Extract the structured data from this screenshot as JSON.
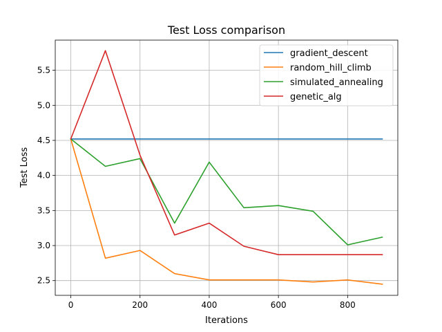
{
  "chart_data": {
    "type": "line",
    "title": "Test Loss comparison",
    "xlabel": "Iterations",
    "ylabel": "Test Loss",
    "xlim": [
      -45,
      945
    ],
    "ylim": [
      2.29,
      5.93
    ],
    "xticks": [
      0,
      200,
      400,
      600,
      800
    ],
    "yticks": [
      2.5,
      3.0,
      3.5,
      4.0,
      4.5,
      5.0,
      5.5
    ],
    "xtick_labels": [
      "0",
      "200",
      "400",
      "600",
      "800"
    ],
    "ytick_labels": [
      "2.5",
      "3.0",
      "3.5",
      "4.0",
      "4.5",
      "5.0",
      "5.5"
    ],
    "grid": true,
    "legend_position": "top-right",
    "x": [
      0,
      100,
      200,
      300,
      400,
      500,
      600,
      700,
      800,
      900
    ],
    "series": [
      {
        "name": "gradient_descent",
        "color": "#1f77b4",
        "values": [
          4.52,
          4.52,
          4.52,
          4.52,
          4.52,
          4.52,
          4.52,
          4.52,
          4.52,
          4.52
        ]
      },
      {
        "name": "random_hill_climb",
        "color": "#ff7f0e",
        "values": [
          4.52,
          2.82,
          2.93,
          2.6,
          2.51,
          2.51,
          2.51,
          2.48,
          2.51,
          2.45
        ]
      },
      {
        "name": "simulated_annealing",
        "color": "#2ca02c",
        "values": [
          4.52,
          4.13,
          4.24,
          3.32,
          4.19,
          3.54,
          3.57,
          3.49,
          3.01,
          3.12
        ]
      },
      {
        "name": "genetic_alg",
        "color": "#d62728",
        "values": [
          4.52,
          5.78,
          4.29,
          3.15,
          3.32,
          2.99,
          2.87,
          2.87,
          2.87,
          2.87
        ]
      }
    ]
  }
}
